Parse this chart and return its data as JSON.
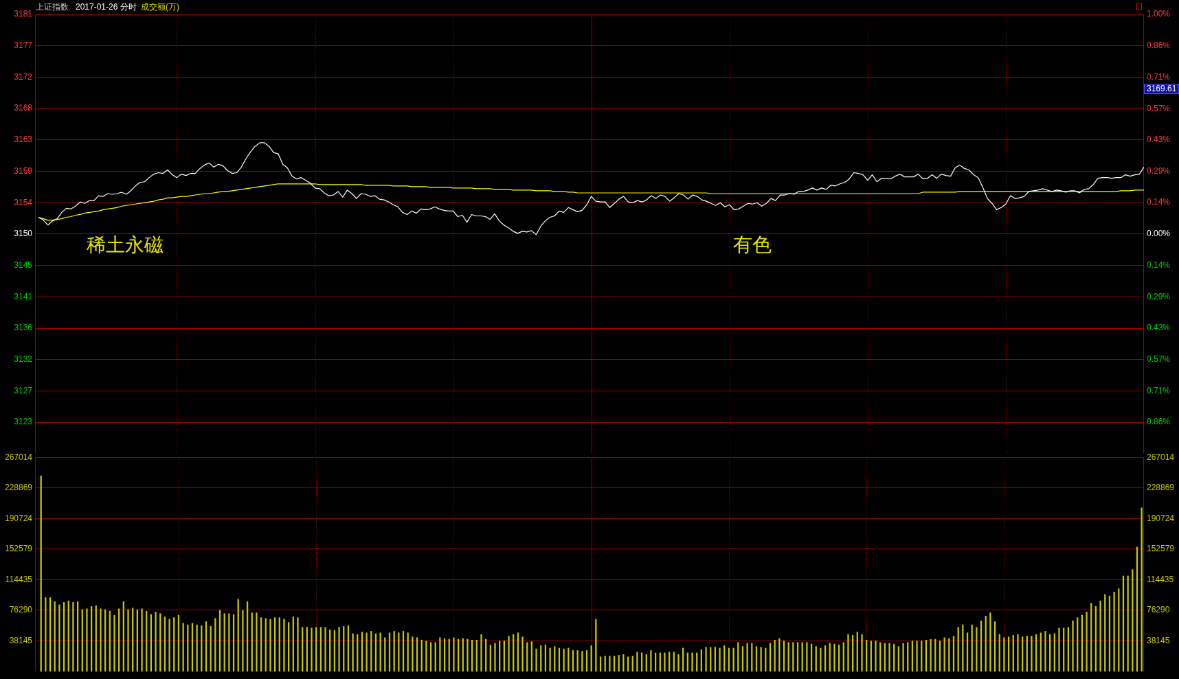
{
  "chart_data": [
    {
      "type": "line",
      "title": "上证指数",
      "subtitle": "2017-01-26 分时",
      "categories": [
        null,
        null,
        null,
        null,
        null,
        null,
        null,
        null,
        null,
        null,
        null,
        null,
        null,
        null,
        null,
        null,
        null,
        null,
        null,
        null,
        null,
        null,
        null,
        null,
        null,
        null,
        null,
        null,
        null,
        null,
        null,
        null,
        null,
        null,
        null,
        null,
        null,
        null,
        null,
        null,
        null,
        null,
        null,
        null,
        null,
        null,
        null,
        null,
        null,
        null,
        null,
        null,
        null,
        null,
        null,
        null,
        null,
        null,
        null,
        null,
        null,
        null,
        null,
        null,
        null,
        null,
        null,
        null,
        null,
        null,
        null,
        null,
        null,
        null,
        null,
        null,
        null,
        null,
        null,
        null,
        null,
        null,
        null,
        null,
        null,
        null,
        null,
        null,
        null,
        null,
        null,
        null,
        null,
        null,
        null,
        null,
        null,
        null,
        null,
        null,
        null,
        null,
        null,
        null,
        null,
        null,
        null,
        null,
        null,
        null,
        null,
        null,
        null,
        null,
        null,
        null,
        null,
        null,
        null,
        null,
        null,
        null,
        null,
        null,
        null,
        null,
        null,
        null,
        null,
        null,
        null,
        null,
        null,
        null,
        null,
        null,
        null,
        null,
        null,
        null,
        null,
        null,
        null,
        null,
        null,
        null,
        null,
        null,
        null,
        null,
        null,
        null,
        null,
        null,
        null,
        null,
        null,
        null,
        null,
        null,
        null,
        null,
        null,
        null,
        null,
        null,
        null,
        null,
        null,
        null,
        null,
        null,
        null,
        null,
        null,
        null,
        null,
        null,
        null,
        null,
        null,
        null,
        null,
        null,
        null,
        null,
        null,
        null,
        null,
        null,
        null,
        null,
        null,
        null,
        null,
        null,
        null,
        null,
        null,
        null,
        null,
        null,
        null,
        null,
        null,
        null,
        null,
        null,
        null,
        null,
        null,
        null,
        null,
        null,
        null,
        null,
        null,
        null,
        null,
        null,
        null,
        null,
        null,
        null,
        null,
        null,
        null,
        null,
        null,
        null,
        null,
        null,
        null,
        null,
        null,
        null,
        null,
        null,
        null,
        null,
        null
      ],
      "series": [
        {
          "color": "#ffffff",
          "values": [
            3151.9,
            3151.5,
            3150.8,
            3151.4,
            3151.7,
            3152.6,
            3153.2,
            3153.1,
            3153.5,
            3154.1,
            3153.9,
            3154.3,
            3154.3,
            3155.0,
            3154.9,
            3155.3,
            3155.2,
            3155.3,
            3155.5,
            3155.2,
            3155.7,
            3156.4,
            3156.9,
            3157.0,
            3157.6,
            3158.1,
            3158.3,
            3158.2,
            3158.7,
            3158.0,
            3157.6,
            3158.1,
            3157.9,
            3158.2,
            3158.2,
            3158.9,
            3159.4,
            3159.7,
            3159.1,
            3159.5,
            3159.3,
            3158.6,
            3158.2,
            3158.3,
            3159.1,
            3160.3,
            3161.3,
            3162.1,
            3162.6,
            3162.6,
            3162.1,
            3161.2,
            3161.0,
            3159.5,
            3159.0,
            3157.8,
            3157.4,
            3157.6,
            3157.2,
            3156.8,
            3156.1,
            3156.0,
            3155.4,
            3155.0,
            3155.1,
            3155.6,
            3154.8,
            3155.8,
            3155.3,
            3154.6,
            3155.3,
            3155.2,
            3154.9,
            3155.0,
            3154.5,
            3154.4,
            3154.1,
            3153.7,
            3153.4,
            3152.6,
            3152.3,
            3152.8,
            3152.5,
            3153.1,
            3153.0,
            3153.1,
            3153.4,
            3153.1,
            3152.9,
            3152.8,
            3152.8,
            3152.0,
            3152.2,
            3151.2,
            3152.3,
            3152.1,
            3152.1,
            3152.0,
            3151.6,
            3152.4,
            3151.4,
            3150.8,
            3150.4,
            3149.9,
            3149.6,
            3149.9,
            3149.8,
            3150.0,
            3149.4,
            3150.6,
            3151.4,
            3151.9,
            3152.1,
            3152.8,
            3152.6,
            3153.3,
            3153.0,
            3152.7,
            3152.9,
            3153.7,
            3154.9,
            3154.2,
            3154.1,
            3154.1,
            3153.3,
            3153.9,
            3154.5,
            3154.9,
            3154.1,
            3154.0,
            3154.3,
            3154.1,
            3154.4,
            3155.0,
            3154.6,
            3155.1,
            3154.9,
            3154.2,
            3154.7,
            3155.3,
            3155.1,
            3154.5,
            3155.1,
            3154.9,
            3154.4,
            3154.2,
            3153.9,
            3153.6,
            3154.0,
            3153.4,
            3153.7,
            3153.0,
            3153.1,
            3153.5,
            3153.9,
            3153.8,
            3154.0,
            3153.5,
            3153.9,
            3154.6,
            3154.3,
            3155.1,
            3155.1,
            3155.3,
            3155.2,
            3155.6,
            3155.6,
            3155.8,
            3156.1,
            3155.8,
            3156.1,
            3155.9,
            3156.5,
            3156.4,
            3156.7,
            3156.9,
            3157.4,
            3158.3,
            3158.2,
            3158.0,
            3157.2,
            3158.0,
            3157.0,
            3157.5,
            3157.5,
            3157.4,
            3157.8,
            3158.1,
            3157.7,
            3157.7,
            3157.7,
            3158.1,
            3157.4,
            3157.5,
            3158.0,
            3157.5,
            3158.1,
            3157.9,
            3157.8,
            3159.0,
            3159.4,
            3158.9,
            3158.7,
            3158.0,
            3157.6,
            3156.2,
            3154.6,
            3153.9,
            3153.0,
            3153.3,
            3153.8,
            3155.0,
            3154.6,
            3154.7,
            3154.9,
            3155.6,
            3155.7,
            3155.8,
            3156.0,
            3155.8,
            3155.6,
            3155.8,
            3155.7,
            3155.5,
            3155.7,
            3155.7,
            3155.4,
            3155.9,
            3156.0,
            3156.6,
            3157.5,
            3157.6,
            3157.6,
            3157.5,
            3157.6,
            3157.6,
            3158.0,
            3157.8,
            3158.0,
            3158.1,
            3159.1
          ]
        },
        {
          "color": "#ffff00",
          "values": [
            3151.9,
            3151.7,
            3151.5,
            3151.5,
            3151.6,
            3151.7,
            3151.9,
            3152.0,
            3152.2,
            3152.3,
            3152.5,
            3152.6,
            3152.7,
            3152.8,
            3153.0,
            3153.1,
            3153.2,
            3153.3,
            3153.5,
            3153.6,
            3153.7,
            3153.8,
            3153.9,
            3154.0,
            3154.1,
            3154.2,
            3154.4,
            3154.5,
            3154.7,
            3154.7,
            3154.8,
            3154.9,
            3154.9,
            3155.0,
            3155.1,
            3155.2,
            3155.3,
            3155.3,
            3155.4,
            3155.5,
            3155.6,
            3155.6,
            3155.7,
            3155.8,
            3155.9,
            3156.0,
            3156.1,
            3156.2,
            3156.3,
            3156.4,
            3156.5,
            3156.6,
            3156.7,
            3156.7,
            3156.7,
            3156.7,
            3156.7,
            3156.7,
            3156.7,
            3156.7,
            3156.7,
            3156.6,
            3156.6,
            3156.6,
            3156.6,
            3156.6,
            3156.6,
            3156.6,
            3156.6,
            3156.6,
            3156.6,
            3156.5,
            3156.5,
            3156.5,
            3156.5,
            3156.5,
            3156.5,
            3156.4,
            3156.4,
            3156.4,
            3156.4,
            3156.3,
            3156.3,
            3156.3,
            3156.3,
            3156.2,
            3156.2,
            3156.2,
            3156.2,
            3156.2,
            3156.1,
            3156.1,
            3156.1,
            3156.1,
            3156.1,
            3156.0,
            3156.0,
            3156.0,
            3156.0,
            3155.9,
            3155.9,
            3155.9,
            3155.9,
            3155.8,
            3155.8,
            3155.8,
            3155.8,
            3155.8,
            3155.7,
            3155.7,
            3155.7,
            3155.7,
            3155.6,
            3155.6,
            3155.6,
            3155.5,
            3155.5,
            3155.4,
            3155.4,
            3155.4,
            3155.4,
            3155.4,
            3155.4,
            3155.4,
            3155.4,
            3155.4,
            3155.4,
            3155.4,
            3155.4,
            3155.4,
            3155.4,
            3155.4,
            3155.4,
            3155.4,
            3155.4,
            3155.4,
            3155.4,
            3155.4,
            3155.4,
            3155.4,
            3155.4,
            3155.4,
            3155.4,
            3155.4,
            3155.4,
            3155.4,
            3155.3,
            3155.3,
            3155.3,
            3155.3,
            3155.3,
            3155.3,
            3155.3,
            3155.3,
            3155.3,
            3155.3,
            3155.3,
            3155.3,
            3155.3,
            3155.3,
            3155.3,
            3155.3,
            3155.3,
            3155.3,
            3155.3,
            3155.3,
            3155.3,
            3155.3,
            3155.3,
            3155.3,
            3155.3,
            3155.3,
            3155.3,
            3155.3,
            3155.3,
            3155.3,
            3155.3,
            3155.3,
            3155.3,
            3155.3,
            3155.3,
            3155.3,
            3155.3,
            3155.3,
            3155.3,
            3155.3,
            3155.3,
            3155.3,
            3155.3,
            3155.3,
            3155.3,
            3155.3,
            3155.5,
            3155.5,
            3155.5,
            3155.5,
            3155.5,
            3155.5,
            3155.5,
            3155.5,
            3155.6,
            3155.6,
            3155.6,
            3155.6,
            3155.6,
            3155.6,
            3155.6,
            3155.6,
            3155.6,
            3155.6,
            3155.6,
            3155.6,
            3155.6,
            3155.6,
            3155.6,
            3155.6,
            3155.6,
            3155.6,
            3155.6,
            3155.6,
            3155.6,
            3155.6,
            3155.6,
            3155.6,
            3155.6,
            3155.6,
            3155.6,
            3155.6,
            3155.6,
            3155.6,
            3155.6,
            3155.6,
            3155.6,
            3155.6,
            3155.6,
            3155.7,
            3155.7,
            3155.7,
            3155.8,
            3155.8,
            3155.8
          ]
        }
      ],
      "ylim": [
        3118,
        3181
      ],
      "yticks": [
        3181,
        {
          "value": 3176.5,
          "label": "3177"
        },
        3172,
        {
          "value": 3167.5,
          "label": "3168"
        },
        3163,
        {
          "value": 3158.5,
          "label": "3159"
        },
        3154,
        {
          "value": 3149.5,
          "label": "3150"
        },
        3145,
        {
          "value": 3140.5,
          "label": "3141"
        },
        3136,
        {
          "value": 3131.5,
          "label": "3132"
        },
        3127,
        {
          "value": 3122.5,
          "label": "3123"
        }
      ],
      "y2lim": [
        -1,
        1
      ],
      "y2ticks": [
        {
          "value": 1,
          "label": "1.00%"
        },
        {
          "value": 0.857,
          "label": "0.86%"
        },
        {
          "value": 0.714,
          "label": "0.71%"
        },
        {
          "value": 0.571,
          "label": "0.57%"
        },
        {
          "value": 0.429,
          "label": "0.43%"
        },
        {
          "value": 0.286,
          "label": "0.29%"
        },
        {
          "value": 0.143,
          "label": "0.14%"
        },
        {
          "value": 0,
          "label": "0.00%"
        },
        {
          "value": -0.143,
          "label": "0.14%"
        },
        {
          "value": -0.286,
          "label": "0.29%"
        },
        {
          "value": -0.429,
          "label": "0.43%"
        },
        {
          "value": -0.571,
          "label": "0.57%"
        },
        {
          "value": -0.714,
          "label": "0.71%"
        },
        {
          "value": -0.857,
          "label": "0.86%"
        }
      ],
      "grid": true,
      "annotations": [
        "成交额(万)",
        "稀土永磁",
        "有色",
        "3169.61"
      ]
    },
    {
      "type": "bar",
      "categories": [
        null,
        null,
        null,
        null,
        null,
        null,
        null,
        null,
        null,
        null,
        null,
        null,
        null,
        null,
        null,
        null,
        null,
        null,
        null,
        null,
        null,
        null,
        null,
        null,
        null,
        null,
        null,
        null,
        null,
        null,
        null,
        null,
        null,
        null,
        null,
        null,
        null,
        null,
        null,
        null,
        null,
        null,
        null,
        null,
        null,
        null,
        null,
        null,
        null,
        null,
        null,
        null,
        null,
        null,
        null,
        null,
        null,
        null,
        null,
        null,
        null,
        null,
        null,
        null,
        null,
        null,
        null,
        null,
        null,
        null,
        null,
        null,
        null,
        null,
        null,
        null,
        null,
        null,
        null,
        null,
        null,
        null,
        null,
        null,
        null,
        null,
        null,
        null,
        null,
        null,
        null,
        null,
        null,
        null,
        null,
        null,
        null,
        null,
        null,
        null,
        null,
        null,
        null,
        null,
        null,
        null,
        null,
        null,
        null,
        null,
        null,
        null,
        null,
        null,
        null,
        null,
        null,
        null,
        null,
        null,
        null,
        null,
        null,
        null,
        null,
        null,
        null,
        null,
        null,
        null,
        null,
        null,
        null,
        null,
        null,
        null,
        null,
        null,
        null,
        null,
        null,
        null,
        null,
        null,
        null,
        null,
        null,
        null,
        null,
        null,
        null,
        null,
        null,
        null,
        null,
        null,
        null,
        null,
        null,
        null,
        null,
        null,
        null,
        null,
        null,
        null,
        null,
        null,
        null,
        null,
        null,
        null,
        null,
        null,
        null,
        null,
        null,
        null,
        null,
        null,
        null,
        null,
        null,
        null,
        null,
        null,
        null,
        null,
        null,
        null,
        null,
        null,
        null,
        null,
        null,
        null,
        null,
        null,
        null,
        null,
        null,
        null,
        null,
        null,
        null,
        null,
        null,
        null,
        null,
        null,
        null,
        null,
        null,
        null,
        null,
        null,
        null,
        null,
        null,
        null,
        null,
        null,
        null,
        null,
        null,
        null,
        null,
        null,
        null,
        null,
        null,
        null,
        null,
        null,
        null,
        null,
        null,
        null,
        null,
        null,
        null
      ],
      "values": [
        244000,
        92000,
        92000,
        87000,
        83000,
        86000,
        88000,
        86000,
        87000,
        77000,
        78000,
        81000,
        82000,
        78000,
        77000,
        75000,
        70000,
        78000,
        87000,
        77000,
        79000,
        77000,
        78000,
        75000,
        71000,
        74000,
        72000,
        68000,
        65000,
        67000,
        70000,
        60000,
        58000,
        60000,
        58000,
        57000,
        62000,
        56000,
        66000,
        76000,
        72000,
        72000,
        71000,
        90000,
        76000,
        87000,
        73000,
        73000,
        67000,
        66000,
        65000,
        67000,
        67000,
        65000,
        61000,
        68000,
        67000,
        55000,
        55000,
        54000,
        55000,
        55000,
        55000,
        52000,
        51000,
        55000,
        56000,
        57000,
        47000,
        46000,
        49000,
        48000,
        50000,
        47000,
        48000,
        42000,
        48000,
        50000,
        48000,
        50000,
        48000,
        43000,
        42000,
        39000,
        38000,
        36000,
        36000,
        42000,
        41000,
        40000,
        42000,
        40000,
        41000,
        40000,
        39000,
        39000,
        46000,
        40000,
        33000,
        35000,
        38000,
        38000,
        44000,
        46000,
        48000,
        43000,
        36000,
        37000,
        28000,
        32000,
        33000,
        29000,
        31000,
        29000,
        28000,
        29000,
        26000,
        26000,
        25000,
        26000,
        32000,
        65000,
        18000,
        19000,
        19000,
        19000,
        20000,
        21000,
        18000,
        19000,
        24000,
        23000,
        21000,
        26000,
        23000,
        23000,
        23000,
        24000,
        24000,
        21000,
        29000,
        23000,
        23000,
        23000,
        27000,
        30000,
        30000,
        30000,
        29000,
        32000,
        29000,
        29000,
        36000,
        31000,
        35000,
        35000,
        31000,
        30000,
        29000,
        35000,
        39000,
        41000,
        38000,
        36000,
        36000,
        36000,
        36000,
        36000,
        34000,
        31000,
        29000,
        32000,
        35000,
        34000,
        33000,
        36000,
        46000,
        45000,
        49000,
        46000,
        39000,
        38000,
        38000,
        36000,
        35000,
        35000,
        34000,
        31000,
        35000,
        36000,
        38000,
        38000,
        38000,
        39000,
        40000,
        40000,
        38000,
        42000,
        41000,
        44000,
        55000,
        58000,
        48000,
        58000,
        55000,
        63000,
        69000,
        73000,
        62000,
        46000,
        42000,
        43000,
        45000,
        46000,
        43000,
        44000,
        44000,
        46000,
        48000,
        50000,
        46000,
        47000,
        54000,
        54000,
        55000,
        63000,
        67000,
        70000,
        74000,
        85000,
        81000,
        88000,
        96000,
        94000,
        99000,
        103000,
        119000,
        119000,
        127000,
        155000,
        204000
      ],
      "color": "#c8c800",
      "ylim": [
        0,
        267014
      ],
      "yticks": [
        38145,
        76290,
        114435,
        152579,
        190724,
        228869,
        267014
      ],
      "y2lim": [
        0,
        267014
      ],
      "y2ticks": [
        38145,
        76290,
        114435,
        152579,
        190724,
        228869,
        267014
      ],
      "grid": true
    }
  ]
}
